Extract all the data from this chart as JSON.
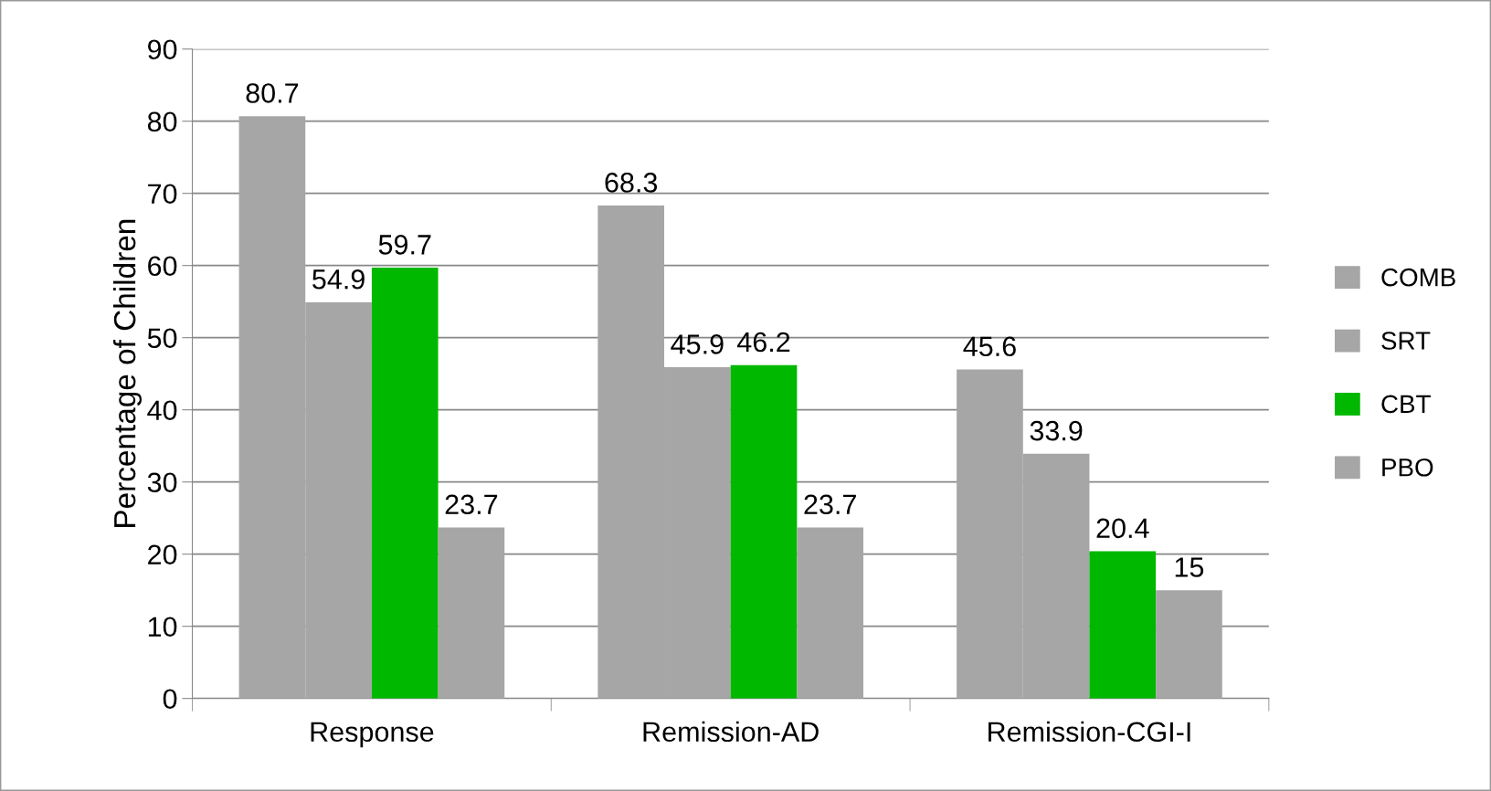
{
  "chart_data": {
    "type": "bar",
    "ylabel": "Percentage of Children",
    "categories": [
      "Response",
      "Remission-AD",
      "Remission-CGI-I"
    ],
    "series": [
      {
        "name": "COMB",
        "color": "#a6a6a6",
        "values": [
          80.7,
          68.3,
          45.6
        ]
      },
      {
        "name": "SRT",
        "color": "#a6a6a6",
        "values": [
          54.9,
          45.9,
          33.9
        ]
      },
      {
        "name": "CBT",
        "color": "#00b800",
        "values": [
          59.7,
          46.2,
          20.4
        ]
      },
      {
        "name": "PBO",
        "color": "#a6a6a6",
        "values": [
          23.7,
          23.7,
          15
        ]
      }
    ],
    "ylim": [
      0,
      90
    ],
    "yticks": [
      0,
      10,
      20,
      30,
      40,
      50,
      60,
      70,
      80,
      90
    ],
    "grid": "y",
    "legend": "right",
    "data_labels": true
  }
}
